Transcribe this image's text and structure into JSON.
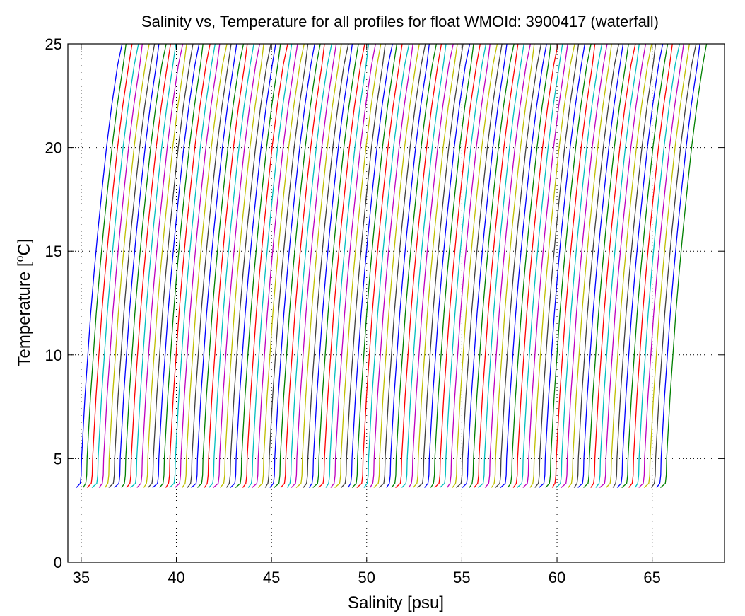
{
  "chart_data": {
    "type": "line",
    "title": "Salinity vs, Temperature for all profiles for float WMOId: 3900417 (waterfall)",
    "xlabel": "Salinity [psu]",
    "ylabel_main": "Temperature [",
    "ylabel_sup": "o",
    "ylabel_tail": "C]",
    "xlim": [
      34.3,
      68.8
    ],
    "ylim": [
      0,
      25
    ],
    "xticks": [
      35,
      40,
      45,
      50,
      55,
      60,
      65
    ],
    "yticks": [
      0,
      5,
      10,
      15,
      20,
      25
    ],
    "grid": true,
    "grid_style": "dotted",
    "series_colors": [
      "#0000ff",
      "#008000",
      "#ff0000",
      "#00bfbf",
      "#bf00bf",
      "#bfbf00",
      "#404040"
    ],
    "waterfall": {
      "profile_count": 107,
      "first_profile_start_salinity": 35.0,
      "offset_per_profile_psu": 0.29,
      "profile_shape": [
        {
          "t": 3.6,
          "ds": -0.25
        },
        {
          "t": 3.8,
          "ds": -0.05
        },
        {
          "t": 4.2,
          "ds": 0.0
        },
        {
          "t": 5.0,
          "ds": 0.02
        },
        {
          "t": 6.0,
          "ds": 0.08
        },
        {
          "t": 8.0,
          "ds": 0.2
        },
        {
          "t": 10.0,
          "ds": 0.35
        },
        {
          "t": 12.0,
          "ds": 0.5
        },
        {
          "t": 14.0,
          "ds": 0.68
        },
        {
          "t": 16.0,
          "ds": 0.88
        },
        {
          "t": 18.0,
          "ds": 1.1
        },
        {
          "t": 20.0,
          "ds": 1.33
        },
        {
          "t": 22.0,
          "ds": 1.6
        },
        {
          "t": 24.0,
          "ds": 1.92
        },
        {
          "t": 25.0,
          "ds": 2.1
        }
      ]
    }
  }
}
